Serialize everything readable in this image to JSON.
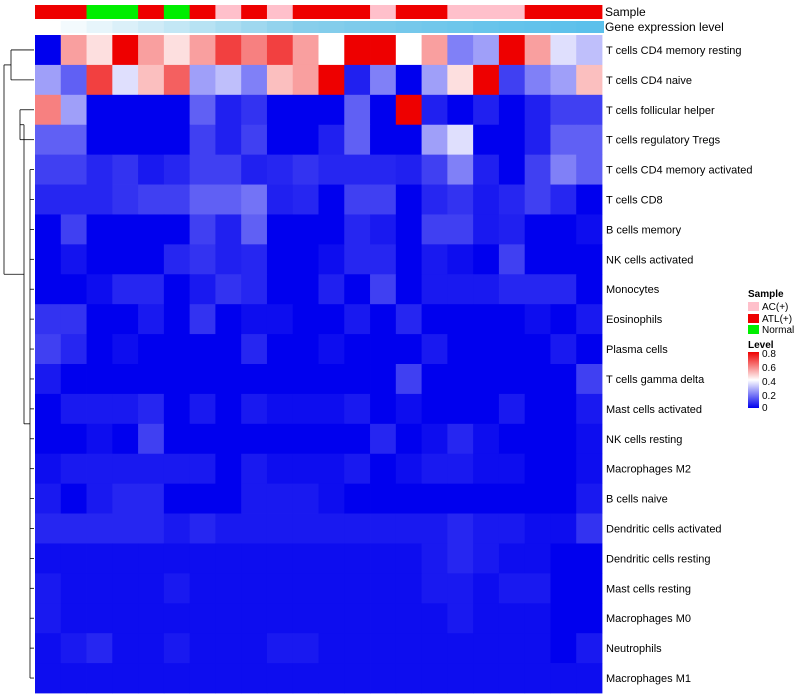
{
  "chart_data": {
    "type": "heatmap",
    "annotation_labels": {
      "sample": "Sample",
      "gene_expression": "Gene expression level"
    },
    "sample_colors": {
      "AC(+)": "#ffc0cb",
      "ATL(+)": "#ee0000",
      "Normal": "#00ee00"
    },
    "gene_expression_gradient": [
      "#ffffff",
      "#87ceeb",
      "#5bc0eb"
    ],
    "sample_annotation": [
      "ATL(+)",
      "ATL(+)",
      "Normal",
      "Normal",
      "ATL(+)",
      "Normal",
      "ATL(+)",
      "AC(+)",
      "ATL(+)",
      "AC(+)",
      "ATL(+)",
      "ATL(+)",
      "ATL(+)",
      "AC(+)",
      "ATL(+)",
      "ATL(+)",
      "AC(+)",
      "AC(+)",
      "AC(+)",
      "ATL(+)",
      "ATL(+)",
      "ATL(+)"
    ],
    "gene_expression": [
      0.0,
      0.05,
      0.1,
      0.15,
      0.2,
      0.25,
      0.3,
      0.35,
      0.4,
      0.45,
      0.5,
      0.55,
      0.6,
      0.65,
      0.7,
      0.75,
      0.8,
      0.85,
      0.9,
      0.92,
      0.95,
      1.0
    ],
    "rows": [
      "T cells CD4 memory resting",
      "T cells CD4 naive",
      "T cells follicular helper",
      "T cells regulatory  Tregs",
      "T cells CD4 memory activated",
      "T cells CD8",
      "B cells memory",
      "NK cells activated",
      "Monocytes",
      "Eosinophils",
      "Plasma cells",
      "T cells gamma delta",
      "Mast cells activated",
      "NK cells resting",
      "Macrophages M2",
      "B cells naive",
      "Dendritic cells activated",
      "Dendritic cells resting",
      "Mast cells resting",
      "Macrophages M0",
      "Neutrophils",
      "Macrophages M1"
    ],
    "values": [
      [
        0.0,
        0.55,
        0.45,
        0.8,
        0.55,
        0.45,
        0.55,
        0.7,
        0.6,
        0.7,
        0.55,
        0.4,
        0.8,
        0.8,
        0.4,
        0.55,
        0.2,
        0.25,
        0.8,
        0.55,
        0.35,
        0.3
      ],
      [
        0.25,
        0.15,
        0.7,
        0.35,
        0.5,
        0.65,
        0.25,
        0.3,
        0.2,
        0.5,
        0.55,
        0.8,
        0.05,
        0.2,
        0.0,
        0.25,
        0.45,
        0.8,
        0.1,
        0.2,
        0.25,
        0.5
      ],
      [
        0.6,
        0.25,
        0.0,
        0.0,
        0.0,
        0.0,
        0.15,
        0.05,
        0.08,
        0.0,
        0.0,
        0.0,
        0.15,
        0.0,
        0.8,
        0.05,
        0.0,
        0.05,
        0.0,
        0.05,
        0.1,
        0.1
      ],
      [
        0.15,
        0.15,
        0.0,
        0.0,
        0.0,
        0.0,
        0.1,
        0.05,
        0.1,
        0.0,
        0.0,
        0.05,
        0.15,
        0.0,
        0.0,
        0.25,
        0.35,
        0.0,
        0.0,
        0.05,
        0.15,
        0.15
      ],
      [
        0.1,
        0.1,
        0.06,
        0.08,
        0.04,
        0.06,
        0.1,
        0.1,
        0.05,
        0.06,
        0.08,
        0.06,
        0.06,
        0.06,
        0.05,
        0.1,
        0.2,
        0.05,
        0.0,
        0.1,
        0.2,
        0.15
      ],
      [
        0.06,
        0.06,
        0.06,
        0.08,
        0.1,
        0.1,
        0.15,
        0.15,
        0.18,
        0.05,
        0.06,
        0.0,
        0.1,
        0.1,
        0.0,
        0.06,
        0.08,
        0.04,
        0.06,
        0.1,
        0.06,
        0.0
      ],
      [
        0.0,
        0.1,
        0.0,
        0.0,
        0.0,
        0.0,
        0.1,
        0.05,
        0.15,
        0.0,
        0.0,
        0.0,
        0.06,
        0.04,
        0.0,
        0.1,
        0.1,
        0.04,
        0.05,
        0.0,
        0.0,
        0.02
      ],
      [
        0.0,
        0.03,
        0.0,
        0.0,
        0.0,
        0.06,
        0.08,
        0.05,
        0.06,
        0.0,
        0.0,
        0.02,
        0.06,
        0.06,
        0.0,
        0.04,
        0.02,
        0.0,
        0.1,
        0.0,
        0.0,
        0.0
      ],
      [
        0.0,
        0.0,
        0.02,
        0.06,
        0.06,
        0.0,
        0.04,
        0.08,
        0.06,
        0.0,
        0.0,
        0.05,
        0.0,
        0.1,
        0.0,
        0.04,
        0.04,
        0.04,
        0.06,
        0.06,
        0.06,
        0.0
      ],
      [
        0.08,
        0.08,
        0.0,
        0.0,
        0.04,
        0.0,
        0.08,
        0.0,
        0.02,
        0.02,
        0.0,
        0.0,
        0.04,
        0.0,
        0.06,
        0.0,
        0.0,
        0.0,
        0.0,
        0.02,
        0.0,
        0.04
      ],
      [
        0.1,
        0.06,
        0.0,
        0.02,
        0.0,
        0.0,
        0.0,
        0.0,
        0.06,
        0.0,
        0.0,
        0.02,
        0.0,
        0.0,
        0.0,
        0.04,
        0.0,
        0.0,
        0.0,
        0.0,
        0.04,
        0.0
      ],
      [
        0.04,
        0.0,
        0.0,
        0.0,
        0.0,
        0.0,
        0.0,
        0.0,
        0.0,
        0.0,
        0.0,
        0.0,
        0.0,
        0.0,
        0.1,
        0.0,
        0.0,
        0.0,
        0.0,
        0.0,
        0.0,
        0.1
      ],
      [
        0.0,
        0.04,
        0.04,
        0.04,
        0.06,
        0.0,
        0.04,
        0.0,
        0.04,
        0.02,
        0.02,
        0.02,
        0.04,
        0.0,
        0.02,
        0.0,
        0.0,
        0.0,
        0.04,
        0.0,
        0.0,
        0.04
      ],
      [
        0.0,
        0.0,
        0.02,
        0.0,
        0.1,
        0.0,
        0.0,
        0.0,
        0.0,
        0.0,
        0.0,
        0.0,
        0.0,
        0.06,
        0.0,
        0.02,
        0.06,
        0.02,
        0.0,
        0.0,
        0.0,
        0.02
      ],
      [
        0.02,
        0.04,
        0.04,
        0.04,
        0.04,
        0.04,
        0.04,
        0.0,
        0.04,
        0.02,
        0.02,
        0.02,
        0.04,
        0.0,
        0.02,
        0.04,
        0.04,
        0.02,
        0.02,
        0.0,
        0.0,
        0.02
      ],
      [
        0.04,
        0.0,
        0.04,
        0.06,
        0.06,
        0.0,
        0.0,
        0.0,
        0.04,
        0.04,
        0.04,
        0.02,
        0.0,
        0.0,
        0.0,
        0.0,
        0.0,
        0.0,
        0.0,
        0.0,
        0.0,
        0.04
      ],
      [
        0.06,
        0.06,
        0.06,
        0.06,
        0.06,
        0.04,
        0.06,
        0.04,
        0.04,
        0.04,
        0.04,
        0.04,
        0.04,
        0.04,
        0.04,
        0.04,
        0.06,
        0.04,
        0.04,
        0.02,
        0.02,
        0.08
      ],
      [
        0.02,
        0.02,
        0.02,
        0.02,
        0.02,
        0.02,
        0.02,
        0.02,
        0.02,
        0.02,
        0.02,
        0.02,
        0.02,
        0.02,
        0.02,
        0.04,
        0.06,
        0.04,
        0.02,
        0.02,
        0.0,
        0.0
      ],
      [
        0.04,
        0.02,
        0.02,
        0.02,
        0.02,
        0.04,
        0.02,
        0.02,
        0.02,
        0.02,
        0.02,
        0.02,
        0.02,
        0.02,
        0.02,
        0.04,
        0.04,
        0.02,
        0.04,
        0.04,
        0.0,
        0.0
      ],
      [
        0.04,
        0.02,
        0.02,
        0.02,
        0.02,
        0.02,
        0.02,
        0.02,
        0.02,
        0.02,
        0.02,
        0.02,
        0.02,
        0.02,
        0.02,
        0.02,
        0.04,
        0.02,
        0.02,
        0.02,
        0.0,
        0.0
      ],
      [
        0.02,
        0.04,
        0.06,
        0.02,
        0.02,
        0.04,
        0.02,
        0.02,
        0.02,
        0.04,
        0.04,
        0.02,
        0.02,
        0.02,
        0.02,
        0.02,
        0.02,
        0.02,
        0.02,
        0.02,
        0.0,
        0.04
      ],
      [
        0.02,
        0.02,
        0.02,
        0.02,
        0.02,
        0.02,
        0.02,
        0.02,
        0.02,
        0.02,
        0.02,
        0.02,
        0.02,
        0.02,
        0.02,
        0.02,
        0.02,
        0.02,
        0.02,
        0.02,
        0.02,
        0.02
      ]
    ],
    "legends": {
      "sample": {
        "title": "Sample",
        "entries": [
          "AC(+)",
          "ATL(+)",
          "Normal"
        ]
      },
      "level": {
        "title": "Level",
        "ticks": [
          "0.8",
          "0.6",
          "0.4",
          "0.2",
          "0"
        ],
        "range": [
          0,
          0.8
        ]
      }
    },
    "color_scale": [
      "#0000ee",
      "#ffffff",
      "#ee0000"
    ]
  }
}
